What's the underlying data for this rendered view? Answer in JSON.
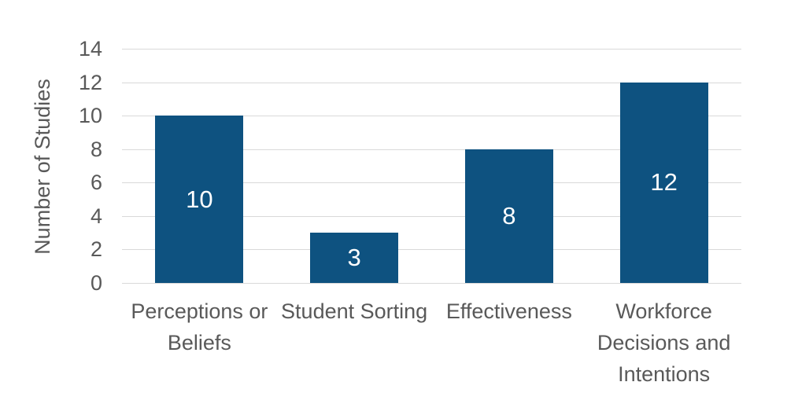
{
  "chart_data": {
    "type": "bar",
    "title": "",
    "xlabel": "",
    "ylabel": "Number of Studies",
    "categories": [
      "Perceptions or Beliefs",
      "Student Sorting",
      "Effectiveness",
      "Workforce Decisions and Intentions"
    ],
    "values": [
      10,
      3,
      8,
      12
    ],
    "data_labels_shown": true,
    "ylim": [
      0,
      14
    ],
    "ytick_step": 2,
    "yticks": [
      0,
      2,
      4,
      6,
      8,
      10,
      12,
      14
    ],
    "grid": true,
    "legend": false,
    "colors": {
      "bar": "#0e5280",
      "bar_value_label": "#ffffff",
      "axis_text": "#595959",
      "gridline": "#d9d9d9",
      "background": "#ffffff"
    }
  }
}
